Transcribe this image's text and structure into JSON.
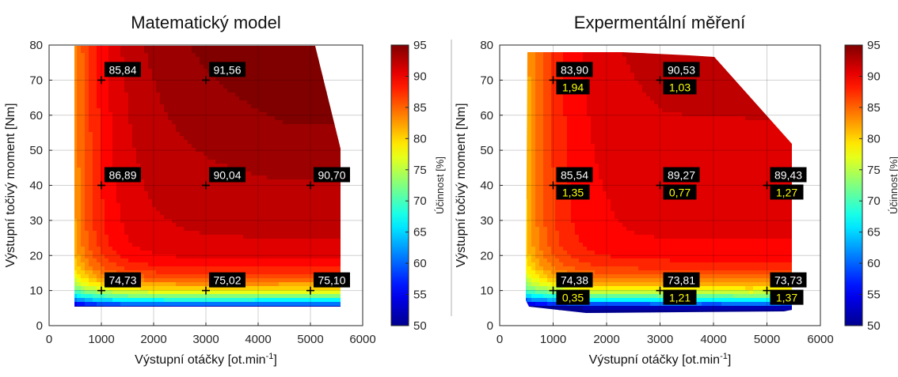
{
  "divider_color": "#b0b0b0",
  "colorbar": {
    "label": "Účinnost [%]",
    "min": 50,
    "max": 95,
    "ticks": [
      "50",
      "55",
      "60",
      "65",
      "70",
      "75",
      "80",
      "85",
      "90",
      "95"
    ],
    "colormap": "jet",
    "anchor_colors": [
      "#00008f",
      "#0000ff",
      "#0080ff",
      "#00ffff",
      "#80ff80",
      "#ffff00",
      "#ff8000",
      "#ff0000",
      "#800000"
    ]
  },
  "chart_data": [
    {
      "type": "filled-contour",
      "title": "Matematický model",
      "xlabel": "Výstupní otáčky [ot.min",
      "xlabel_sup": "-1",
      "xlabel_end": "]",
      "ylabel": "Výstupní točivý moment [Nm]",
      "xlim": [
        0,
        6000
      ],
      "ylim": [
        0,
        80
      ],
      "xticks": [
        "0",
        "1000",
        "2000",
        "3000",
        "4000",
        "5000",
        "6000"
      ],
      "yticks": [
        "0",
        "10",
        "20",
        "30",
        "40",
        "50",
        "60",
        "70",
        "80"
      ],
      "grid": true,
      "points": [
        {
          "x": 1000,
          "y": 70,
          "label": "85,84"
        },
        {
          "x": 3000,
          "y": 70,
          "label": "91,56"
        },
        {
          "x": 1000,
          "y": 40,
          "label": "86,89"
        },
        {
          "x": 3000,
          "y": 40,
          "label": "90,04"
        },
        {
          "x": 5000,
          "y": 40,
          "label": "90,70"
        },
        {
          "x": 1000,
          "y": 10,
          "label": "74,73"
        },
        {
          "x": 3000,
          "y": 10,
          "label": "75,02"
        },
        {
          "x": 5000,
          "y": 10,
          "label": "75,10"
        }
      ]
    },
    {
      "type": "filled-contour",
      "title": "Expermentální měření",
      "xlabel": "Výstupní otáčky [ot.min",
      "xlabel_sup": "-1",
      "xlabel_end": "]",
      "ylabel": "Výstupní točivý moment [Nm]",
      "xlim": [
        0,
        6000
      ],
      "ylim": [
        0,
        80
      ],
      "xticks": [
        "0",
        "1000",
        "2000",
        "3000",
        "4000",
        "5000",
        "6000"
      ],
      "yticks": [
        "0",
        "10",
        "20",
        "30",
        "40",
        "50",
        "60",
        "70",
        "80"
      ],
      "grid": true,
      "points": [
        {
          "x": 1000,
          "y": 70,
          "label": "83,90",
          "sub": "1,94"
        },
        {
          "x": 3000,
          "y": 70,
          "label": "90,53",
          "sub": "1,03"
        },
        {
          "x": 1000,
          "y": 40,
          "label": "85,54",
          "sub": "1,35"
        },
        {
          "x": 3000,
          "y": 40,
          "label": "89,27",
          "sub": "0,77"
        },
        {
          "x": 5000,
          "y": 40,
          "label": "89,43",
          "sub": "1,27"
        },
        {
          "x": 1000,
          "y": 10,
          "label": "74,38",
          "sub": "0,35"
        },
        {
          "x": 3000,
          "y": 10,
          "label": "73,81",
          "sub": "1,21"
        },
        {
          "x": 5000,
          "y": 10,
          "label": "73,73",
          "sub": "1,37"
        }
      ]
    }
  ]
}
